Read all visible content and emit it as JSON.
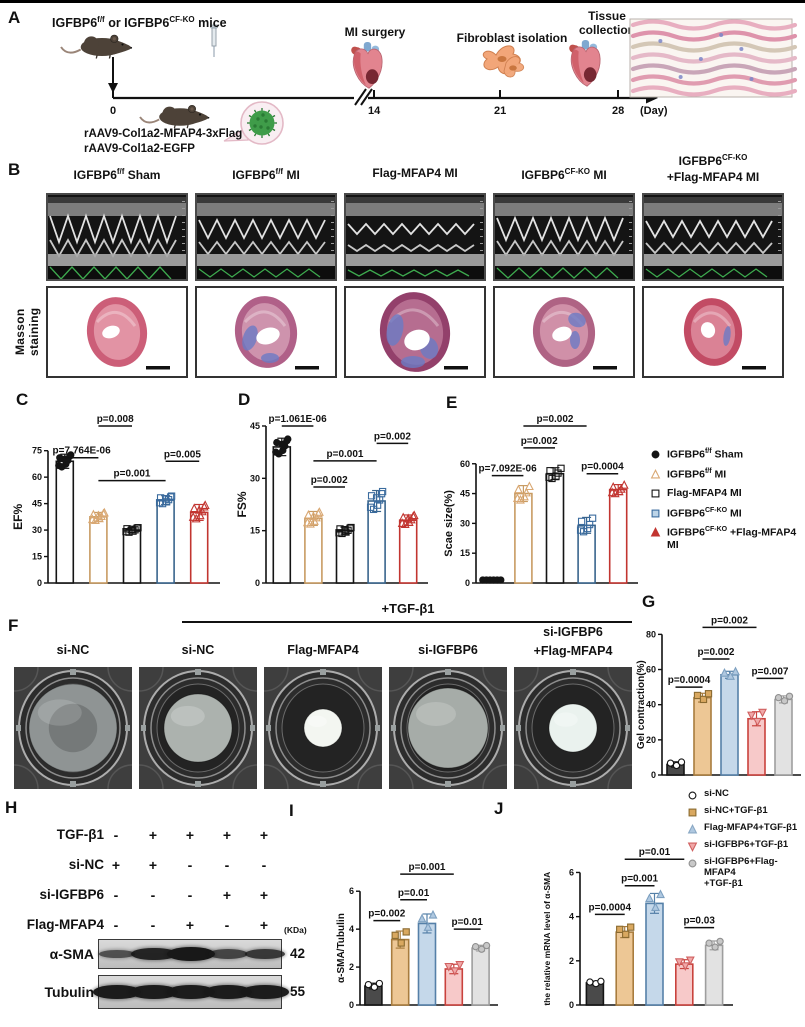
{
  "panels": {
    "A": "A",
    "B": "B",
    "C": "C",
    "D": "D",
    "E": "E",
    "F": "F",
    "G": "G",
    "H": "H",
    "I": "I",
    "J": "J"
  },
  "colors": {
    "black": "#141414",
    "tan_stroke": "#C89B62",
    "blue_stroke": "#39648C",
    "red_stroke": "#C23530",
    "fill_dark": "#4A4A4A",
    "fill_tan": "#EDC795",
    "fill_blue": "#C5D8EA",
    "fill_pink": "#F7C9C9",
    "fill_gray": "#E2E2E2",
    "ecg_green": "#3DAA4E",
    "masson_pink": "#C05570",
    "masson_blue": "#6C7BC4",
    "fibroblast_orange": "#F2A679",
    "virus_green": "#3F9C49"
  },
  "panelA": {
    "title_parts": [
      {
        "t": "IGFBP6"
      },
      {
        "sup": "f/f"
      },
      {
        "t": " or IGFBP6"
      },
      {
        "sup": "CF-KO"
      },
      {
        "t": " mice"
      }
    ],
    "events": {
      "mi": "MI surgery",
      "fibroblast": "Fibroblast isolation",
      "tissue_l1": "Tissue",
      "tissue_l2": "collection"
    },
    "timeline": {
      "t0": "0",
      "t14": "14",
      "t21": "21",
      "t28": "28",
      "unit": "(Day)"
    },
    "aav_line1": "rAAV9-Col1a2-MFAP4-3xFlag",
    "aav_line2": "rAAV9-Col1a2-EGFP"
  },
  "panelB": {
    "row_label": "Masson staining",
    "cols": [
      {
        "b": "IGFBP6",
        "s": "f/f",
        "r": " Sham"
      },
      {
        "b": "IGFBP6",
        "s": "f/f",
        "r": " MI"
      },
      {
        "b": "Flag-MFAP4 MI",
        "s": "",
        "r": ""
      },
      {
        "b": "IGFBP6",
        "s": "CF-KO",
        "r": " MI"
      },
      {
        "b": "IGFBP6",
        "s": "CF-KO",
        "r": "",
        "line2": "+Flag-MFAP4 MI"
      }
    ]
  },
  "legendE": {
    "items": [
      {
        "marker": "black-filled-circle",
        "b": "IGFBP6",
        "s": "f/f",
        "r": " Sham"
      },
      {
        "marker": "tan-open-triangle",
        "b": "IGFBP6",
        "s": "f/f",
        "r": " MI"
      },
      {
        "marker": "black-open-square",
        "b": "Flag-MFAP4 MI",
        "s": "",
        "r": ""
      },
      {
        "marker": "blue-open-square",
        "b": "IGFBP6",
        "s": "CF-KO",
        "r": " MI"
      },
      {
        "marker": "red-filled-triangle",
        "b": "IGFBP6",
        "s": "CF-KO",
        "r": " +Flag-MFAP4 MI"
      }
    ]
  },
  "panelF": {
    "tgf_header": "+TGF-β1",
    "cols": [
      "si-NC",
      "si-NC",
      "Flag-MFAP4",
      "si-IGFBP6"
    ],
    "col5_line1": "si-IGFBP6",
    "col5_line2": "+Flag-MFAP4"
  },
  "legendG": {
    "items": [
      {
        "marker": "black-open-circle",
        "l1": "si-NC"
      },
      {
        "marker": "tan-filled-square",
        "l1": "si-NC+TGF-β1"
      },
      {
        "marker": "blue-filled-triangle",
        "l1": "Flag-MFAP4+TGF-β1"
      },
      {
        "marker": "pink-down-triangle",
        "l1": "si-IGFBP6+TGF-β1"
      },
      {
        "marker": "gray-filled-circle",
        "l1": "si-IGFBP6+Flag-MFAP4",
        "l2": "+TGF-β1"
      }
    ]
  },
  "panelH": {
    "rows": [
      {
        "label": "TGF-β1",
        "signs": [
          "-",
          "+",
          "+",
          "+",
          "+"
        ]
      },
      {
        "label": "si-NC",
        "signs": [
          "+",
          "+",
          "-",
          "-",
          "-"
        ]
      },
      {
        "label": "si-IGFBP6",
        "signs": [
          "-",
          "-",
          "-",
          "+",
          "+"
        ]
      },
      {
        "label": "Flag-MFAP4",
        "signs": [
          "-",
          "-",
          "+",
          "-",
          "+"
        ]
      }
    ],
    "kda_unit": "(KDa)",
    "blots": [
      {
        "name": "α-SMA",
        "kda": "42",
        "bands": [
          0.3,
          0.85,
          1.0,
          0.45,
          0.6
        ]
      },
      {
        "name": "Tubulin",
        "kda": "55",
        "bands": [
          0.95,
          0.95,
          0.95,
          0.95,
          0.95
        ]
      }
    ]
  },
  "chart_data": [
    {
      "id": "C",
      "type": "bar",
      "panel_label": "C",
      "ylabel": "EF%",
      "yticks": [
        0,
        15,
        30,
        45,
        60,
        75
      ],
      "ymax": 75,
      "categories": [
        "IGFBP6f/f Sham",
        "IGFBP6f/f MI",
        "Flag-MFAP4 MI",
        "IGFBP6CF-KO MI",
        "IGFBP6CF-KO +Flag-MFAP4 MI"
      ],
      "values": [
        69,
        37.5,
        30,
        47,
        40
      ],
      "errors": [
        4,
        2.5,
        1.5,
        2.5,
        4.5
      ],
      "n_points": 8,
      "style": "outline",
      "sig": [
        {
          "label": "p=7.764E-06",
          "from": 0,
          "to": 1,
          "at": 71
        },
        {
          "label": "p=0.008",
          "from": 1,
          "to": 2,
          "at": 89
        },
        {
          "label": "p=0.001",
          "from": 1,
          "to": 3,
          "at": 58
        },
        {
          "label": "p=0.005",
          "from": 3,
          "to": 4,
          "at": 69
        }
      ]
    },
    {
      "id": "D",
      "type": "bar",
      "panel_label": "D",
      "ylabel": "FS%",
      "yticks": [
        0,
        15,
        30,
        45
      ],
      "ymax": 45,
      "categories": [
        "IGFBP6f/f Sham",
        "IGFBP6f/f MI",
        "Flag-MFAP4 MI",
        "IGFBP6CF-KO MI",
        "IGFBP6CF-KO +Flag-MFAP4 MI"
      ],
      "values": [
        39,
        18.5,
        15,
        23.5,
        18
      ],
      "errors": [
        2.5,
        2,
        1,
        3,
        1.5
      ],
      "n_points": 8,
      "style": "outline",
      "sig": [
        {
          "label": "p=1.061E-06",
          "from": 0,
          "to": 1,
          "at": 45
        },
        {
          "label": "p=0.002",
          "from": 1,
          "to": 2,
          "at": 27.5
        },
        {
          "label": "p=0.001",
          "from": 1,
          "to": 3,
          "at": 35
        },
        {
          "label": "p=0.002",
          "from": 3,
          "to": 4,
          "at": 40
        }
      ]
    },
    {
      "id": "E",
      "type": "bar",
      "panel_label": "E",
      "ylabel": "Scae size(%)",
      "yticks": [
        0,
        15,
        30,
        45,
        60
      ],
      "ymax": 60,
      "categories": [
        "IGFBP6f/f Sham",
        "IGFBP6f/f MI",
        "Flag-MFAP4 MI",
        "IGFBP6CF-KO MI",
        "IGFBP6CF-KO +Flag-MFAP4 MI"
      ],
      "values": [
        0,
        45,
        55,
        29,
        47
      ],
      "errors": [
        0,
        4,
        3,
        4,
        2.5
      ],
      "n_points": 6,
      "style": "outline",
      "sig": [
        {
          "label": "p=7.092E-06",
          "from": 0,
          "to": 1,
          "at": 54
        },
        {
          "label": "p=0.002",
          "from": 1,
          "to": 2,
          "at": 68
        },
        {
          "label": "p=0.002",
          "from": 1,
          "to": 3,
          "at": 79
        },
        {
          "label": "p=0.0004",
          "from": 3,
          "to": 4,
          "at": 55
        }
      ]
    },
    {
      "id": "G",
      "type": "bar",
      "panel_label": "G",
      "ylabel": "Gel contraction(%)",
      "yticks": [
        0,
        20,
        40,
        60,
        80
      ],
      "ymax": 80,
      "categories": [
        "si-NC",
        "si-NC+TGF-β1",
        "Flag-MFAP4+TGF-β1",
        "si-IGFBP6+TGF-β1",
        "si-IGFBP6+Flag-MFAP4+TGF-β1"
      ],
      "values": [
        6,
        44,
        57,
        32,
        43
      ],
      "errors": [
        1.5,
        2.5,
        2,
        4,
        2
      ],
      "n_points": 3,
      "style": "filled",
      "sig": [
        {
          "label": "p=0.0004",
          "from": 0,
          "to": 1,
          "at": 50
        },
        {
          "label": "p=0.002",
          "from": 1,
          "to": 2,
          "at": 66
        },
        {
          "label": "p=0.002",
          "from": 1,
          "to": 3,
          "at": 84
        },
        {
          "label": "p=0.007",
          "from": 3,
          "to": 4,
          "at": 55
        }
      ]
    },
    {
      "id": "I",
      "type": "bar",
      "panel_label": "I",
      "ylabel": "α-SMA/Tubulin",
      "yticks": [
        0,
        2,
        4,
        6
      ],
      "ymax": 6,
      "categories": [
        "si-NC",
        "si-NC+TGF-β1",
        "Flag-MFAP4+TGF-β1",
        "si-IGFBP6+TGF-β1",
        "si-IGFBP6+Flag-MFAP4+TGF-β1"
      ],
      "values": [
        1,
        3.45,
        4.3,
        1.9,
        3
      ],
      "errors": [
        0.15,
        0.45,
        0.5,
        0.25,
        0.15
      ],
      "n_points": 3,
      "style": "filled",
      "sig": [
        {
          "label": "p=0.002",
          "from": 0,
          "to": 1,
          "at": 4.45
        },
        {
          "label": "p=0.01",
          "from": 1,
          "to": 2,
          "at": 5.55
        },
        {
          "label": "p=0.001",
          "from": 1,
          "to": 3,
          "at": 6.9
        },
        {
          "label": "p=0.01",
          "from": 3,
          "to": 4,
          "at": 4.0
        }
      ]
    },
    {
      "id": "J",
      "type": "bar",
      "panel_label": "J",
      "ylabel": "the relative mRNA level of α-SMA",
      "yticks": [
        0,
        2,
        4,
        6
      ],
      "ymax": 6,
      "categories": [
        "si-NC",
        "si-NC+TGF-β1",
        "Flag-MFAP4+TGF-β1",
        "si-IGFBP6+TGF-β1",
        "si-IGFBP6+Flag-MFAP4+TGF-β1"
      ],
      "values": [
        1,
        3.3,
        4.6,
        1.85,
        2.7
      ],
      "errors": [
        0.08,
        0.25,
        0.45,
        0.2,
        0.2
      ],
      "n_points": 3,
      "style": "filled",
      "sig": [
        {
          "label": "p=0.0004",
          "from": 0,
          "to": 1,
          "at": 4.1
        },
        {
          "label": "p=0.001",
          "from": 1,
          "to": 2,
          "at": 5.4
        },
        {
          "label": "p=0.01",
          "from": 1,
          "to": 3,
          "at": 6.6
        },
        {
          "label": "p=0.03",
          "from": 3,
          "to": 4,
          "at": 3.5
        }
      ]
    }
  ]
}
